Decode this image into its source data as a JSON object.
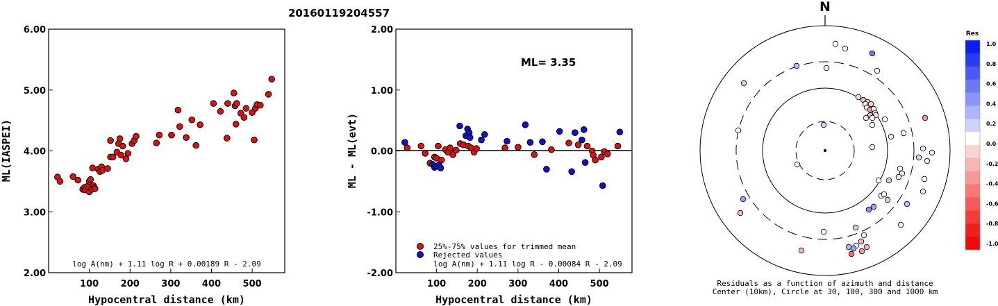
{
  "page_title": "20160119204557",
  "chart_data": [
    {
      "type": "scatter",
      "xlabel": "Hypocentral distance (km)",
      "ylabel": "ML(IASPEI)",
      "xlim": [
        0,
        580
      ],
      "ylim": [
        2.0,
        6.0
      ],
      "x_ticks": [
        "100",
        "200",
        "300",
        "400",
        "500"
      ],
      "y_ticks": [
        "2.00",
        "3.00",
        "4.00",
        "5.00",
        "6.00"
      ],
      "formula": "log A(nm) + 1.11 log R + 0.00189 R - 2.09",
      "series": [
        {
          "color": "#dd1111",
          "points": [
            [
              22,
              3.57
            ],
            [
              28,
              3.5
            ],
            [
              60,
              3.58
            ],
            [
              72,
              3.52
            ],
            [
              84,
              3.37
            ],
            [
              88,
              3.4
            ],
            [
              90,
              3.36
            ],
            [
              96,
              3.42
            ],
            [
              100,
              3.33
            ],
            [
              100,
              3.5
            ],
            [
              103,
              3.53
            ],
            [
              106,
              3.37
            ],
            [
              108,
              3.72
            ],
            [
              110,
              3.43
            ],
            [
              112,
              3.4
            ],
            [
              114,
              3.38
            ],
            [
              122,
              3.7
            ],
            [
              126,
              3.66
            ],
            [
              130,
              3.74
            ],
            [
              132,
              3.68
            ],
            [
              145,
              3.71
            ],
            [
              152,
              3.9
            ],
            [
              152,
              4.17
            ],
            [
              158,
              3.9
            ],
            [
              168,
              3.98
            ],
            [
              172,
              4.12
            ],
            [
              175,
              4.2
            ],
            [
              178,
              3.93
            ],
            [
              182,
              4.08
            ],
            [
              190,
              3.87
            ],
            [
              195,
              3.96
            ],
            [
              205,
              4.12
            ],
            [
              210,
              4.17
            ],
            [
              215,
              4.24
            ],
            [
              265,
              4.13
            ],
            [
              272,
              4.26
            ],
            [
              302,
              4.26
            ],
            [
              318,
              4.67
            ],
            [
              322,
              4.4
            ],
            [
              338,
              4.22
            ],
            [
              352,
              4.51
            ],
            [
              362,
              4.09
            ],
            [
              372,
              4.43
            ],
            [
              405,
              4.78
            ],
            [
              422,
              4.65
            ],
            [
              438,
              4.21
            ],
            [
              440,
              4.78
            ],
            [
              455,
              4.95
            ],
            [
              458,
              4.74
            ],
            [
              460,
              4.44
            ],
            [
              462,
              4.78
            ],
            [
              472,
              4.62
            ],
            [
              480,
              4.55
            ],
            [
              485,
              4.7
            ],
            [
              500,
              4.63
            ],
            [
              505,
              4.18
            ],
            [
              508,
              4.7
            ],
            [
              512,
              4.76
            ],
            [
              520,
              4.75
            ],
            [
              540,
              4.93
            ],
            [
              548,
              5.18
            ]
          ]
        }
      ]
    },
    {
      "type": "scatter",
      "xlabel": "Hypocentral distance (km)",
      "ylabel": "ML - ML(evt)",
      "xlim": [
        0,
        580
      ],
      "ylim": [
        -2.0,
        2.0
      ],
      "x_ticks": [
        "100",
        "200",
        "300",
        "400",
        "500"
      ],
      "y_ticks": [
        "-2.00",
        "-1.00",
        "0.00",
        "1.00",
        "2.00"
      ],
      "ml_label": "ML= 3.35",
      "formula": "log A(nm) + 1.11 log R - 0.00084 R - 2.09",
      "legend": [
        "25%-75% values for trimmed mean",
        "Rejected values"
      ],
      "series": [
        {
          "name": "25%-75% values for trimmed mean",
          "color": "#dd1111",
          "points": [
            [
              28,
              0.05
            ],
            [
              62,
              0.08
            ],
            [
              72,
              -0.04
            ],
            [
              84,
              -0.2
            ],
            [
              95,
              -0.1
            ],
            [
              100,
              -0.12
            ],
            [
              104,
              0.08
            ],
            [
              112,
              -0.15
            ],
            [
              122,
              0.02
            ],
            [
              128,
              -0.02
            ],
            [
              133,
              0.05
            ],
            [
              140,
              -0.06
            ],
            [
              148,
              0.01
            ],
            [
              158,
              0.12
            ],
            [
              166,
              0.1
            ],
            [
              178,
              0.08
            ],
            [
              185,
              0.05
            ],
            [
              192,
              -0.02
            ],
            [
              198,
              0.04
            ],
            [
              268,
              0.05
            ],
            [
              300,
              0.06
            ],
            [
              340,
              -0.06
            ],
            [
              382,
              0.02
            ],
            [
              425,
              0.13
            ],
            [
              448,
              0.1
            ],
            [
              470,
              0.08
            ],
            [
              482,
              0.0
            ],
            [
              485,
              -0.07
            ],
            [
              490,
              -0.15
            ],
            [
              505,
              -0.1
            ],
            [
              512,
              -0.01
            ],
            [
              520,
              -0.05
            ],
            [
              545,
              0.08
            ]
          ]
        },
        {
          "name": "Rejected values",
          "color": "#1111cc",
          "points": [
            [
              22,
              0.14
            ],
            [
              90,
              -0.22
            ],
            [
              95,
              -0.27
            ],
            [
              100,
              -0.25
            ],
            [
              106,
              -0.23
            ],
            [
              110,
              -0.28
            ],
            [
              157,
              0.41
            ],
            [
              172,
              0.25
            ],
            [
              176,
              0.36
            ],
            [
              180,
              0.3
            ],
            [
              182,
              0.22
            ],
            [
              210,
              0.18
            ],
            [
              218,
              0.27
            ],
            [
              273,
              0.16
            ],
            [
              318,
              0.43
            ],
            [
              330,
              0.14
            ],
            [
              360,
              0.15
            ],
            [
              370,
              -0.3
            ],
            [
              402,
              0.32
            ],
            [
              432,
              -0.34
            ],
            [
              440,
              0.3
            ],
            [
              457,
              0.18
            ],
            [
              462,
              0.35
            ],
            [
              465,
              -0.19
            ],
            [
              508,
              -0.57
            ],
            [
              550,
              0.31
            ]
          ]
        }
      ]
    },
    {
      "type": "scatter",
      "subtype": "polar-residual-map",
      "north_label": "N",
      "caption_line1": "Residuals as a function of azimuth and distance",
      "caption_line2": "Center (10km), Circle at 30, 100, 300 and 1000 km",
      "colorbar_title": "Res",
      "colorbar_ticks": [
        "1.0",
        "0.8",
        "0.6",
        "0.4",
        "0.2",
        "0.0",
        "-0.2",
        "-0.4",
        "-0.6",
        "-0.8",
        "-1.0"
      ],
      "colorbar_colors": [
        "#0a1ef0",
        "#2a3cf2",
        "#4b5af4",
        "#6c78f6",
        "#8d96f8",
        "#aeb4fa",
        "#cfd2fc",
        "#ffffff",
        "#fdd2d2",
        "#fbb4b4",
        "#f99696",
        "#f77878",
        "#f55a5a",
        "#f33c3c",
        "#f11e1e",
        "#ef0a0a"
      ],
      "stations": [
        [
          1203,
          63,
          0.0
        ],
        [
          1217,
          70,
          0.0
        ],
        [
          1256,
          77,
          0.6
        ],
        [
          1147,
          95,
          0.3
        ],
        [
          1190,
          98,
          0.1
        ],
        [
          1263,
          102,
          0.0
        ],
        [
          1071,
          120,
          0.2
        ],
        [
          1236,
          140,
          0.1
        ],
        [
          1243,
          144,
          -0.3
        ],
        [
          1249,
          147,
          -0.2
        ],
        [
          1246,
          150,
          -0.1
        ],
        [
          1254,
          150,
          -0.2
        ],
        [
          1248,
          155,
          -0.1
        ],
        [
          1253,
          158,
          -0.4
        ],
        [
          1258,
          157,
          -0.1
        ],
        [
          1260,
          163,
          0.0
        ],
        [
          1253,
          166,
          -0.3
        ],
        [
          1261,
          166,
          -0.1
        ],
        [
          1256,
          170,
          0.0
        ],
        [
          1247,
          170,
          -0.1
        ],
        [
          1186,
          180,
          0.2
        ],
        [
          1256,
          180,
          0.0
        ],
        [
          1274,
          172,
          0.0
        ],
        [
          1332,
          170,
          -0.4
        ],
        [
          1063,
          188,
          0.0
        ],
        [
          1301,
          192,
          0.0
        ],
        [
          1283,
          197,
          0.1
        ],
        [
          1256,
          212,
          0.0
        ],
        [
          1329,
          214,
          0.1
        ],
        [
          1342,
          220,
          0.1
        ],
        [
          1323,
          227,
          0.2
        ],
        [
          1335,
          232,
          0.1
        ],
        [
          1148,
          237,
          0.0
        ],
        [
          1296,
          243,
          0.0
        ],
        [
          1299,
          250,
          0.1
        ],
        [
          1294,
          255,
          0.1
        ],
        [
          1280,
          260,
          0.2
        ],
        [
          1265,
          260,
          0.0
        ],
        [
          1331,
          258,
          0.0
        ],
        [
          1329,
          276,
          -0.1
        ],
        [
          1269,
          282,
          0.1
        ],
        [
          1273,
          280,
          0.0
        ],
        [
          1278,
          288,
          0.2
        ],
        [
          1306,
          294,
          0.3
        ],
        [
          1258,
          298,
          0.4
        ],
        [
          1251,
          302,
          0.5
        ],
        [
          1070,
          287,
          0.4
        ],
        [
          1066,
          307,
          -0.3
        ],
        [
          1297,
          324,
          0.0
        ],
        [
          1232,
          328,
          0.2
        ],
        [
          1186,
          334,
          0.0
        ],
        [
          1244,
          339,
          0.0
        ],
        [
          1240,
          348,
          -0.3
        ],
        [
          1233,
          354,
          0.0
        ],
        [
          1222,
          356,
          0.3
        ],
        [
          1229,
          358,
          0.4
        ],
        [
          1248,
          356,
          -0.3
        ],
        [
          1154,
          361,
          -0.3
        ],
        [
          1241,
          362,
          -0.4
        ],
        [
          1226,
          366,
          -0.6
        ]
      ]
    }
  ]
}
